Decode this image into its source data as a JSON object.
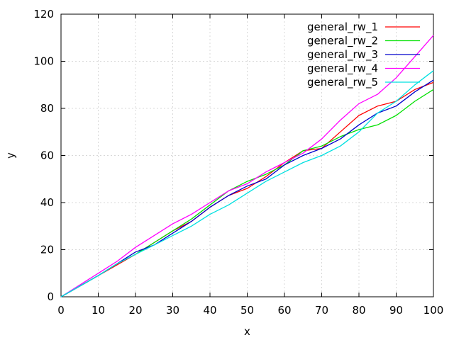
{
  "chart_data": {
    "type": "line",
    "xlabel": "x",
    "ylabel": "y",
    "xlim": [
      0,
      100
    ],
    "ylim": [
      0,
      120
    ],
    "xticks": [
      0,
      10,
      20,
      30,
      40,
      50,
      60,
      70,
      80,
      90,
      100
    ],
    "yticks": [
      0,
      20,
      40,
      60,
      80,
      100,
      120
    ],
    "grid": true,
    "legend_position": "top-right",
    "series": [
      {
        "name": "general_rw_1",
        "color": "#ff0000",
        "x": [
          0,
          5,
          10,
          15,
          20,
          25,
          30,
          35,
          40,
          45,
          50,
          55,
          60,
          65,
          70,
          75,
          80,
          85,
          90,
          95,
          100
        ],
        "y": [
          0,
          4.5,
          9,
          13.5,
          18,
          23,
          28,
          32,
          38,
          43,
          46,
          51,
          57,
          62,
          63,
          70,
          77,
          81,
          83,
          88,
          91
        ]
      },
      {
        "name": "general_rw_2",
        "color": "#00e000",
        "x": [
          0,
          5,
          10,
          15,
          20,
          25,
          30,
          35,
          40,
          45,
          50,
          55,
          60,
          65,
          70,
          75,
          80,
          85,
          90,
          95,
          100
        ],
        "y": [
          0,
          4.5,
          9,
          14,
          18,
          23,
          28,
          33,
          39,
          45,
          49,
          52,
          56,
          62,
          64,
          68,
          71,
          73,
          77,
          83,
          88
        ]
      },
      {
        "name": "general_rw_3",
        "color": "#0000cc",
        "x": [
          0,
          5,
          10,
          15,
          20,
          25,
          30,
          35,
          40,
          45,
          50,
          55,
          60,
          65,
          70,
          75,
          80,
          85,
          90,
          95,
          100
        ],
        "y": [
          0,
          4.5,
          9,
          14,
          19,
          22,
          27,
          32,
          38,
          43,
          47,
          50,
          56,
          60,
          63,
          67,
          73,
          78,
          81,
          87,
          92
        ]
      },
      {
        "name": "general_rw_4",
        "color": "#ff00ff",
        "x": [
          0,
          5,
          10,
          15,
          20,
          25,
          30,
          35,
          40,
          45,
          50,
          55,
          60,
          65,
          70,
          75,
          80,
          85,
          90,
          95,
          100
        ],
        "y": [
          0,
          5,
          10,
          15,
          21,
          26,
          31,
          35,
          40,
          45,
          48,
          53,
          57,
          61,
          67,
          75,
          82,
          86,
          93,
          102,
          111
        ]
      },
      {
        "name": "general_rw_5",
        "color": "#00e0e0",
        "x": [
          0,
          5,
          10,
          15,
          20,
          25,
          30,
          35,
          40,
          45,
          50,
          55,
          60,
          65,
          70,
          75,
          80,
          85,
          90,
          95,
          100
        ],
        "y": [
          0,
          4.5,
          9,
          14,
          18,
          22,
          26,
          30,
          35,
          39,
          44,
          49,
          53,
          57,
          60,
          64,
          70,
          78,
          83,
          90,
          96
        ]
      }
    ]
  }
}
